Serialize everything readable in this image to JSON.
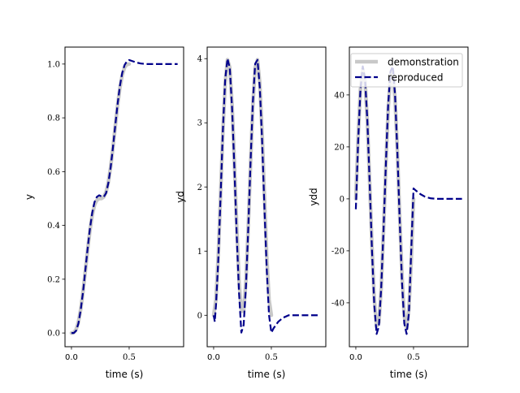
{
  "chart_data": [
    {
      "type": "line",
      "xlabel": "time (s)",
      "ylabel": "y",
      "xlim": [
        -0.056,
        0.972
      ],
      "ylim": [
        -0.051,
        1.063
      ],
      "xticks": [
        {
          "v": 0,
          "label": "0.0"
        },
        {
          "v": 0.5,
          "label": "0.5"
        }
      ],
      "yticks": [
        {
          "v": 0,
          "label": "0.0"
        },
        {
          "v": 0.2,
          "label": "0.2"
        },
        {
          "v": 0.4,
          "label": "0.4"
        },
        {
          "v": 0.6,
          "label": "0.6"
        },
        {
          "v": 0.8,
          "label": "0.8"
        },
        {
          "v": 1.0,
          "label": "1.0"
        }
      ],
      "series": [
        {
          "key": "demonstration",
          "x": [
            0,
            0.02,
            0.04,
            0.06,
            0.08,
            0.1,
            0.12,
            0.14,
            0.16,
            0.18,
            0.2,
            0.22,
            0.24,
            0.26,
            0.28,
            0.3,
            0.32,
            0.34,
            0.36,
            0.38,
            0.4,
            0.42,
            0.44,
            0.46,
            0.48,
            0.5
          ],
          "y": [
            0,
            0.0016,
            0.0128,
            0.0406,
            0.088,
            0.153,
            0.23,
            0.309,
            0.381,
            0.438,
            0.476,
            0.494,
            0.5,
            0.5,
            0.506,
            0.524,
            0.562,
            0.619,
            0.691,
            0.77,
            0.847,
            0.912,
            0.959,
            0.987,
            0.998,
            1.0
          ]
        },
        {
          "key": "reproduced",
          "x": [
            0,
            0.02,
            0.04,
            0.06,
            0.08,
            0.1,
            0.12,
            0.14,
            0.16,
            0.18,
            0.2,
            0.22,
            0.24,
            0.26,
            0.28,
            0.3,
            0.32,
            0.34,
            0.36,
            0.38,
            0.4,
            0.42,
            0.44,
            0.46,
            0.48,
            0.5,
            0.52,
            0.56,
            0.6,
            0.65,
            0.7,
            0.8,
            0.92
          ],
          "y": [
            0,
            0,
            0.008,
            0.035,
            0.085,
            0.152,
            0.232,
            0.314,
            0.388,
            0.447,
            0.487,
            0.506,
            0.512,
            0.508,
            0.506,
            0.52,
            0.558,
            0.617,
            0.692,
            0.773,
            0.852,
            0.919,
            0.967,
            0.996,
            1.01,
            1.015,
            1.012,
            1.006,
            1.002,
            1.0,
            1.0,
            1.0,
            1.0
          ]
        }
      ]
    },
    {
      "type": "line",
      "xlabel": "time (s)",
      "ylabel": "yd",
      "xlim": [
        -0.056,
        0.972
      ],
      "ylim": [
        -0.49,
        4.18
      ],
      "xticks": [
        {
          "v": 0,
          "label": "0.0"
        },
        {
          "v": 0.5,
          "label": "0.5"
        }
      ],
      "yticks": [
        {
          "v": 0,
          "label": "0"
        },
        {
          "v": 1,
          "label": "1"
        },
        {
          "v": 2,
          "label": "2"
        },
        {
          "v": 3,
          "label": "3"
        },
        {
          "v": 4,
          "label": "4"
        }
      ],
      "series": [
        {
          "key": "demonstration",
          "x": [
            0,
            0.02,
            0.04,
            0.06,
            0.08,
            0.1,
            0.12,
            0.14,
            0.16,
            0.18,
            0.2,
            0.22,
            0.24,
            0.26,
            0.28,
            0.3,
            0.32,
            0.34,
            0.36,
            0.38,
            0.4,
            0.42,
            0.44,
            0.46,
            0.48,
            0.5
          ],
          "y": [
            0,
            0.247,
            0.928,
            1.874,
            2.852,
            3.618,
            3.984,
            3.86,
            3.275,
            2.375,
            1.382,
            0.542,
            0.063,
            0.063,
            0.542,
            1.382,
            2.375,
            3.275,
            3.86,
            3.984,
            3.618,
            2.852,
            1.874,
            0.928,
            0.247,
            0
          ]
        },
        {
          "key": "reproduced",
          "x": [
            0,
            0.01,
            0.02,
            0.04,
            0.06,
            0.08,
            0.1,
            0.12,
            0.14,
            0.16,
            0.18,
            0.2,
            0.22,
            0.24,
            0.26,
            0.28,
            0.3,
            0.32,
            0.34,
            0.36,
            0.38,
            0.4,
            0.42,
            0.44,
            0.46,
            0.48,
            0.5,
            0.52,
            0.56,
            0.6,
            0.65,
            0.7,
            0.8,
            0.92
          ],
          "y": [
            0,
            -0.1,
            0.15,
            0.85,
            1.85,
            2.88,
            3.68,
            4.0,
            3.85,
            3.22,
            2.28,
            1.24,
            0.35,
            -0.27,
            -0.15,
            0.45,
            1.35,
            2.4,
            3.33,
            3.92,
            3.98,
            3.55,
            2.72,
            1.68,
            0.72,
            0.0,
            -0.27,
            -0.2,
            -0.1,
            -0.04,
            0,
            0,
            0,
            0
          ]
        }
      ]
    },
    {
      "type": "line",
      "xlabel": "time (s)",
      "ylabel": "ydd",
      "xlim": [
        -0.056,
        0.972
      ],
      "ylim": [
        -56.9,
        58.4
      ],
      "xticks": [
        {
          "v": 0,
          "label": "0.0"
        },
        {
          "v": 0.5,
          "label": "0.5"
        }
      ],
      "yticks": [
        {
          "v": -40,
          "label": "-40"
        },
        {
          "v": -20,
          "label": "-20"
        },
        {
          "v": 0,
          "label": "0"
        },
        {
          "v": 20,
          "label": "20"
        },
        {
          "v": 40,
          "label": "40"
        }
      ],
      "legend": {
        "placement": "upper-left",
        "entries": [
          {
            "key": "demonstration",
            "label": "demonstration"
          },
          {
            "key": "reproduced",
            "label": "reproduced"
          }
        ]
      },
      "series": [
        {
          "key": "demonstration",
          "x": [
            0,
            0.02,
            0.04,
            0.06,
            0.08,
            0.1,
            0.12,
            0.14,
            0.16,
            0.18,
            0.2,
            0.22,
            0.24,
            0.26,
            0.28,
            0.3,
            0.32,
            0.34,
            0.36,
            0.38,
            0.4,
            0.42,
            0.44,
            0.46,
            0.48,
            0.5
          ],
          "y": [
            0,
            24.1,
            42.2,
            49.9,
            45.2,
            29.4,
            6.3,
            -18.4,
            -38.5,
            -49.1,
            -47.6,
            -34.2,
            -12.4,
            12.4,
            34.2,
            47.6,
            49.1,
            38.5,
            18.4,
            -6.3,
            -29.4,
            -45.2,
            -49.9,
            -42.2,
            -24.1,
            0
          ]
        },
        {
          "key": "reproduced",
          "x": [
            0,
            0.02,
            0.04,
            0.06,
            0.08,
            0.1,
            0.12,
            0.14,
            0.16,
            0.18,
            0.2,
            0.22,
            0.24,
            0.26,
            0.28,
            0.3,
            0.32,
            0.34,
            0.36,
            0.38,
            0.4,
            0.42,
            0.44,
            0.46,
            0.48,
            0.5,
            0.52,
            0.56,
            0.6,
            0.65,
            0.7,
            0.8,
            0.92
          ],
          "y": [
            -4,
            22,
            42,
            51,
            46,
            30,
            6,
            -20,
            -41,
            -52,
            -49,
            -34,
            -12,
            13,
            36,
            49,
            51,
            40,
            18,
            -8,
            -32,
            -48,
            -52,
            -44,
            -20,
            4,
            3.2,
            1.8,
            0.8,
            0.2,
            0,
            0,
            0
          ]
        }
      ]
    }
  ],
  "styles": {
    "demonstration": {
      "color": "#c8c8c8",
      "dash": "solid"
    },
    "reproduced": {
      "color": "#00008b",
      "dash": "dashed"
    }
  }
}
